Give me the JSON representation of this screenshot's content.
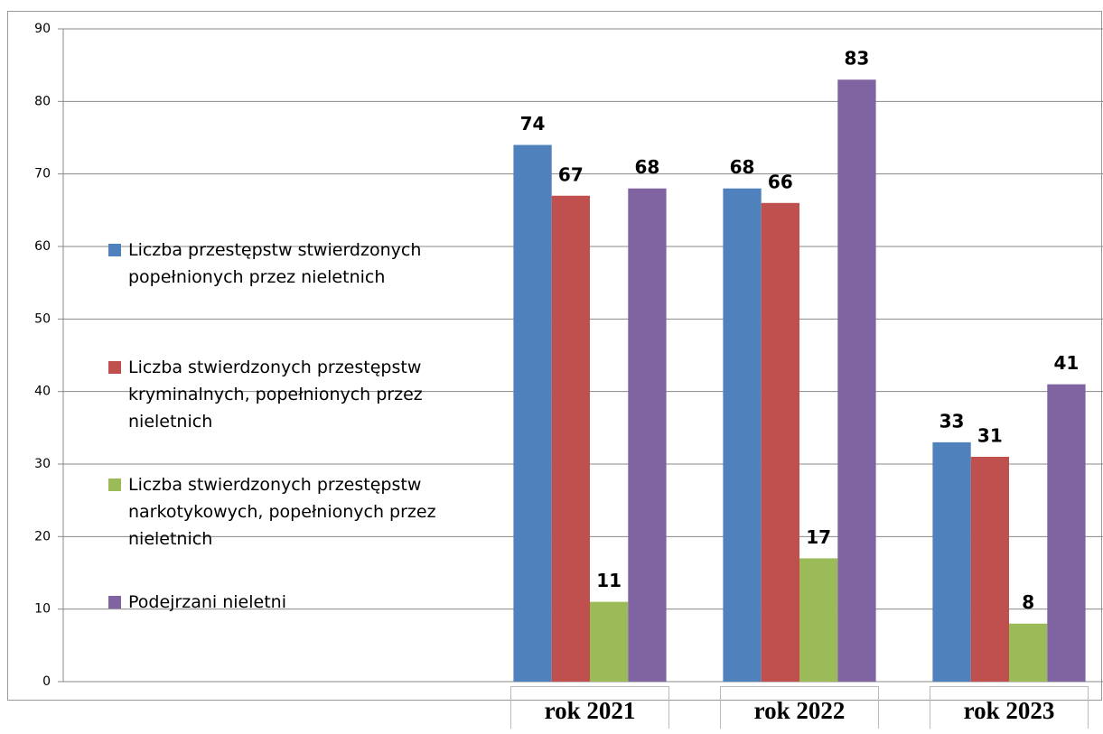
{
  "chart_data": {
    "type": "bar",
    "categories": [
      "rok 2021",
      "rok 2022",
      "rok 2023"
    ],
    "series": [
      {
        "name": "Liczba przestępstw stwierdzonych popełnionych przez nieletnich",
        "color": "#4f81bd",
        "values": [
          74,
          68,
          33
        ]
      },
      {
        "name": "Liczba stwierdzonych przestępstw kryminalnych, popełnionych przez nieletnich",
        "color": "#c0504d",
        "values": [
          67,
          66,
          31
        ]
      },
      {
        "name": "Liczba stwierdzonych przestępstw narkotykowych, popełnionych przez nieletnich",
        "color": "#9bbb59",
        "values": [
          11,
          17,
          8
        ]
      },
      {
        "name": "Podejrzani nieletni",
        "color": "#8064a2",
        "values": [
          68,
          83,
          41
        ]
      }
    ],
    "ylim": [
      0,
      90
    ],
    "yticks": [
      0,
      10,
      20,
      30,
      40,
      50,
      60,
      70,
      80,
      90
    ],
    "grid": true,
    "legend": "left"
  }
}
